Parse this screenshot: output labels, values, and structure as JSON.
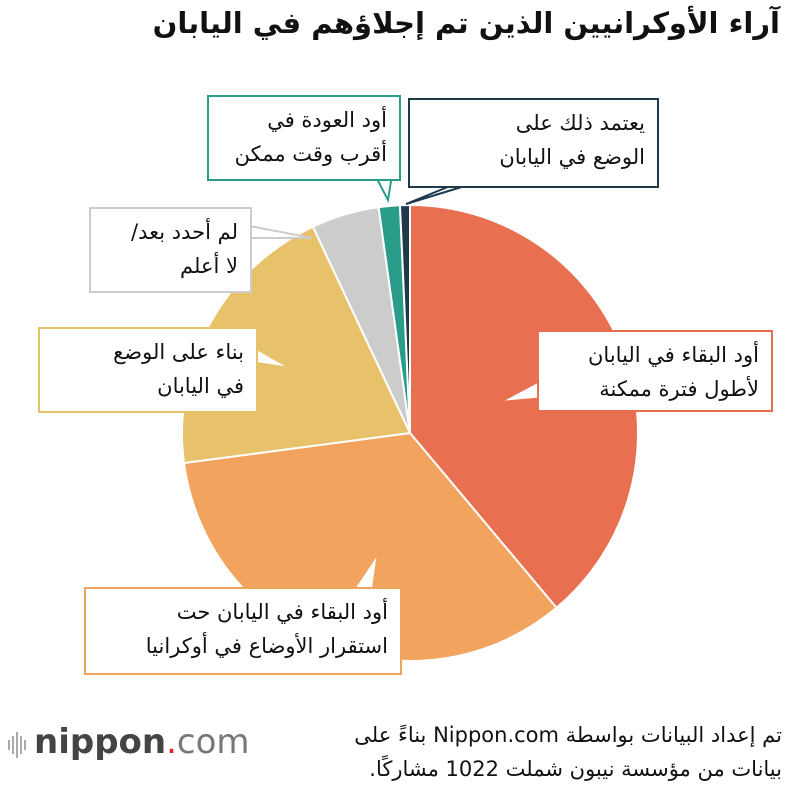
{
  "chart_data": {
    "type": "pie",
    "title": "آراء الأوكرانيين الذين تم إجلاؤهم في اليابان",
    "start": "top",
    "direction": "clockwise",
    "slices": [
      {
        "label": "أود البقاء في اليابان لأطول فترة ممكنة",
        "lines": [
          "أود البقاء في اليابان",
          "لأطول فترة ممكنة"
        ],
        "value": 38.9,
        "color": "#e87050"
      },
      {
        "label": "أود البقاء في اليابان حت استقرار الأوضاع في أوكرانيا",
        "lines": [
          "أود البقاء في اليابان حت",
          "استقرار الأوضاع في أوكرانيا"
        ],
        "value": 34.0,
        "color": "#f2a35e"
      },
      {
        "label": "بناء على الوضع في اليابان",
        "lines": [
          "بناء على الوضع",
          "في اليابان"
        ],
        "value": 20.1,
        "color": "#e8c26a"
      },
      {
        "label": "لم أحدد بعد/ لا أعلم",
        "lines": [
          "لم أحدد بعد/",
          "لا أعلم"
        ],
        "value": 4.8,
        "color": "#cccccc"
      },
      {
        "label": "أود العودة في أقرب وقت ممكن",
        "lines": [
          "أود العودة في",
          "أقرب وقت ممكن"
        ],
        "value": 1.5,
        "color": "#2a9d8a"
      },
      {
        "label": "يعتمد ذلك على الوضع في اليابان",
        "lines": [
          "يعتمد ذلك على",
          "الوضع في اليابان"
        ],
        "value": 0.7,
        "color": "#1f3a4d"
      }
    ]
  },
  "source": {
    "lines": [
      "تم إعداد البيانات بواسطة Nippon.com بناءً على",
      "بيانات من مؤسسة نيبون شملت 1022 مشاركًا."
    ]
  },
  "logo": {
    "name": "nippon",
    "dot": ".",
    "suffix": "com"
  }
}
